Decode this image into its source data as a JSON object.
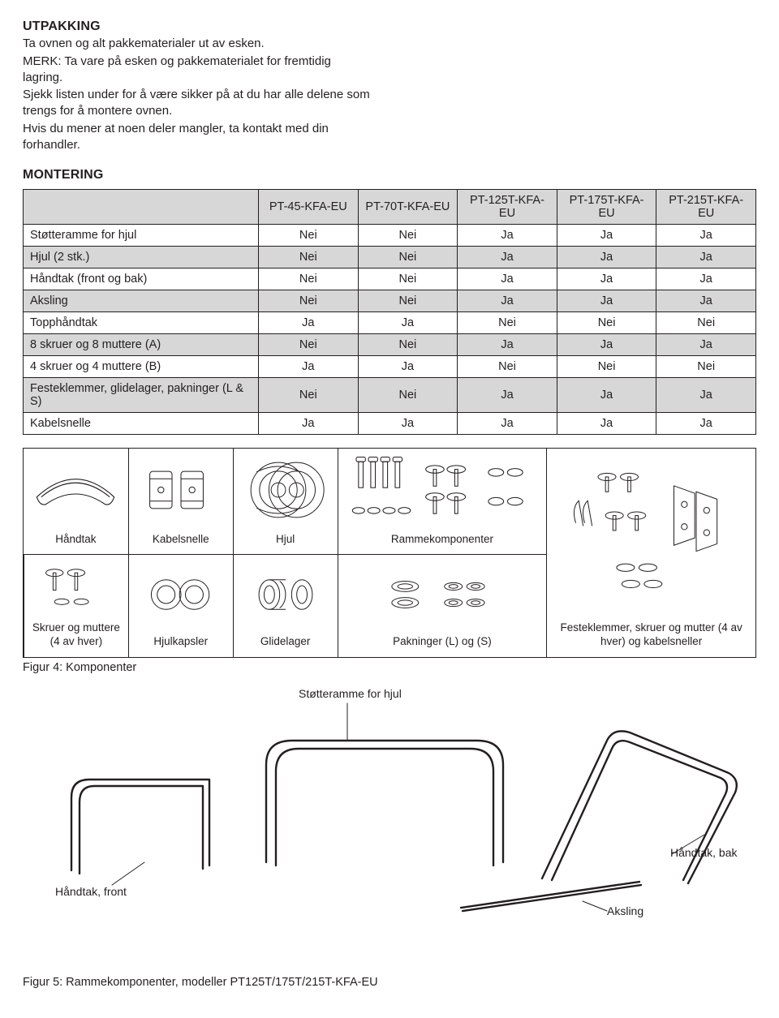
{
  "sections": {
    "utpakking_title": "UTPAKKING",
    "utpakking_p1": "Ta ovnen og alt pakkematerialer ut av esken.",
    "utpakking_p2": "MERK: Ta vare på esken og pakkematerialet for fremtidig lagring.",
    "utpakking_p3": "Sjekk listen under for å være sikker på at du har alle delene som trengs for å montere ovnen.",
    "utpakking_p4": "Hvis du mener at noen deler mangler, ta kontakt med din forhandler.",
    "montering_title": "MONTERING"
  },
  "table": {
    "columns": [
      "PT-45-KFA-EU",
      "PT-70T-KFA-EU",
      "PT-125T-KFA-EU",
      "PT-175T-KFA-EU",
      "PT-215T-KFA-EU"
    ],
    "rows": [
      {
        "label": "Støtteramme for hjul",
        "vals": [
          "Nei",
          "Nei",
          "Ja",
          "Ja",
          "Ja"
        ],
        "shade": false
      },
      {
        "label": "Hjul (2 stk.)",
        "vals": [
          "Nei",
          "Nei",
          "Ja",
          "Ja",
          "Ja"
        ],
        "shade": true
      },
      {
        "label": "Håndtak (front og bak)",
        "vals": [
          "Nei",
          "Nei",
          "Ja",
          "Ja",
          "Ja"
        ],
        "shade": false
      },
      {
        "label": "Aksling",
        "vals": [
          "Nei",
          "Nei",
          "Ja",
          "Ja",
          "Ja"
        ],
        "shade": true
      },
      {
        "label": "Topphåndtak",
        "vals": [
          "Ja",
          "Ja",
          "Nei",
          "Nei",
          "Nei"
        ],
        "shade": false
      },
      {
        "label": "8 skruer og 8 muttere (A)",
        "vals": [
          "Nei",
          "Nei",
          "Ja",
          "Ja",
          "Ja"
        ],
        "shade": true
      },
      {
        "label": "4 skruer og 4 muttere (B)",
        "vals": [
          "Ja",
          "Ja",
          "Nei",
          "Nei",
          "Nei"
        ],
        "shade": false
      },
      {
        "label": "Festeklemmer, glidelager, pakninger (L & S)",
        "vals": [
          "Nei",
          "Nei",
          "Ja",
          "Ja",
          "Ja"
        ],
        "shade": true
      },
      {
        "label": "Kabelsnelle",
        "vals": [
          "Ja",
          "Ja",
          "Ja",
          "Ja",
          "Ja"
        ],
        "shade": false
      }
    ],
    "header_bg": "#d7d7d7",
    "border": "#231f20"
  },
  "comp_labels": {
    "handtak": "Håndtak",
    "kabelsnelle": "Kabelsnelle",
    "hjul": "Hjul",
    "rammekomponenter": "Rammekomponenter",
    "skruer_muttere": "Skruer og muttere (4 av hver)",
    "hjulkapsler": "Hjulkapsler",
    "glidelager": "Glidelager",
    "pakninger": "Pakninger (L) og (S)",
    "festeklemmer": "Festeklemmer, skruer og mutter (4 av hver) og kabelsneller"
  },
  "figures": {
    "fig4": "Figur 4: Komponenter",
    "fig5": "Figur 5: Rammekomponenter, modeller PT125T/175T/215T-KFA-EU",
    "cb_label1": "Støtteramme for hjul",
    "cb_label2": "Håndtak, bak",
    "cb_label3": "Håndtak, front",
    "cb_label4": "Aksling"
  },
  "style": {
    "text_color": "#231f20",
    "bg": "#ffffff",
    "line_stroke": "#231f20",
    "line_width": 1.2,
    "thin_width": 0.9,
    "font_body": 15,
    "font_caption": 14
  }
}
